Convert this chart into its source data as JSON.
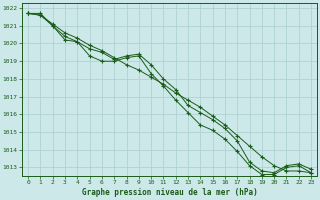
{
  "title": "Graphe pression niveau de la mer (hPa)",
  "bg_color": "#cce8e8",
  "grid_color": "#aacece",
  "line_color": "#1a5c1a",
  "xlim": [
    -0.5,
    23.5
  ],
  "ylim": [
    1012.5,
    1022.3
  ],
  "yticks": [
    1013,
    1014,
    1015,
    1016,
    1017,
    1018,
    1019,
    1020,
    1021,
    1022
  ],
  "xticks": [
    0,
    1,
    2,
    3,
    4,
    5,
    6,
    7,
    8,
    9,
    10,
    11,
    12,
    13,
    14,
    15,
    16,
    17,
    18,
    19,
    20,
    21,
    22,
    23
  ],
  "series1_x": [
    0,
    1,
    2,
    3,
    4,
    5,
    6,
    7,
    8,
    9,
    10,
    11,
    12,
    13,
    14,
    15,
    16,
    17,
    18,
    19,
    20,
    21,
    22,
    23
  ],
  "series1": [
    1021.7,
    1021.6,
    1021.0,
    1020.4,
    1020.1,
    1019.7,
    1019.5,
    1019.1,
    1019.3,
    1019.4,
    1018.8,
    1018.0,
    1017.4,
    1016.5,
    1016.1,
    1015.7,
    1015.2,
    1014.5,
    1013.3,
    1012.8,
    1012.7,
    1013.1,
    1013.2,
    1012.9
  ],
  "series2_x": [
    0,
    1,
    2,
    3,
    4,
    5,
    6,
    7,
    8,
    9,
    10,
    11,
    12,
    13,
    14,
    15,
    16,
    17,
    18,
    19,
    20,
    21,
    22,
    23
  ],
  "series2": [
    1021.7,
    1021.6,
    1021.1,
    1020.6,
    1020.3,
    1019.9,
    1019.6,
    1019.2,
    1018.8,
    1018.5,
    1018.1,
    1017.7,
    1017.2,
    1016.8,
    1016.4,
    1015.9,
    1015.4,
    1014.8,
    1014.2,
    1013.6,
    1013.1,
    1012.8,
    1012.8,
    1012.7
  ],
  "series3_x": [
    0,
    1,
    2,
    3,
    4,
    5,
    6,
    7,
    8,
    9,
    10,
    11,
    12,
    13,
    14,
    15,
    16,
    17,
    18,
    19,
    20,
    21,
    22,
    23
  ],
  "series3": [
    1021.7,
    1021.7,
    1021.0,
    1020.2,
    1020.1,
    1019.3,
    1019.0,
    1019.0,
    1019.2,
    1019.3,
    1018.3,
    1017.6,
    1016.8,
    1016.1,
    1015.4,
    1015.1,
    1014.6,
    1013.9,
    1013.1,
    1012.6,
    1012.6,
    1013.0,
    1013.1,
    1012.7
  ],
  "ylabel_fontsize": 5.0,
  "xlabel_fontsize": 5.5,
  "tick_fontsize": 4.5
}
